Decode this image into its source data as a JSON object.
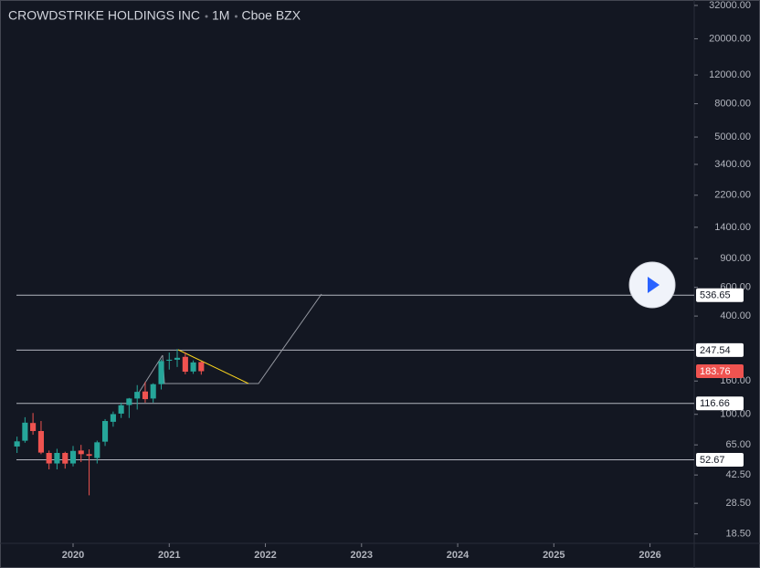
{
  "chart_data": {
    "type": "candlestick",
    "title_parts": [
      "CROWDSTRIKE HOLDINGS INC",
      "1M",
      "Cboe BZX"
    ],
    "x": [
      2019.417,
      2019.5,
      2019.583,
      2019.667,
      2019.75,
      2019.833,
      2019.917,
      2020,
      2020.083,
      2020.167,
      2020.25,
      2020.333,
      2020.417,
      2020.5,
      2020.583,
      2020.667,
      2020.75,
      2020.833,
      2020.917,
      2021,
      2021.083,
      2021.167,
      2021.25,
      2021.333
    ],
    "open": [
      63.5,
      68.9,
      88.5,
      79,
      58,
      50,
      58,
      50,
      60,
      57,
      54,
      68,
      90,
      101,
      114,
      125,
      138,
      125,
      153,
      213,
      216,
      225,
      183,
      209
    ],
    "high": [
      73,
      96,
      101.9,
      91,
      60,
      61.5,
      59,
      64,
      65,
      61,
      69,
      93.5,
      104,
      118,
      126,
      151,
      158,
      155,
      217,
      239,
      251,
      240,
      214,
      211
    ],
    "low": [
      58,
      67,
      75,
      57,
      46,
      46,
      46.5,
      48,
      51,
      31.9,
      50,
      64,
      84,
      95,
      95,
      107,
      118,
      118,
      142,
      188,
      195,
      176,
      177,
      175
    ],
    "close": [
      68.3,
      88.9,
      79,
      58.3,
      50,
      58,
      49.9,
      59.7,
      57,
      55.7,
      67.4,
      91,
      100.3,
      113.7,
      125,
      137.3,
      123.9,
      153,
      211.8,
      216,
      222,
      182.5,
      208,
      183.76
    ],
    "up_color": "#26a69a",
    "down_color": "#ef5350",
    "log_scale": true,
    "ylim": [
      16.2,
      34560
    ],
    "yticks": [
      {
        "value": 32000,
        "label": "32000.00"
      },
      {
        "value": 20000,
        "label": "20000.00"
      },
      {
        "value": 12000,
        "label": "12000.00"
      },
      {
        "value": 8000,
        "label": "8000.00"
      },
      {
        "value": 5000,
        "label": "5000.00"
      },
      {
        "value": 3400,
        "label": "3400.00"
      },
      {
        "value": 2200,
        "label": "2200.00"
      },
      {
        "value": 1400,
        "label": "1400.00"
      },
      {
        "value": 900,
        "label": "900.00"
      },
      {
        "value": 600,
        "label": "600.00"
      },
      {
        "value": 400,
        "label": "400.00"
      },
      {
        "value": 160,
        "label": "160.00"
      },
      {
        "value": 100,
        "label": "100.00"
      },
      {
        "value": 65,
        "label": "65.00"
      },
      {
        "value": 42.5,
        "label": "42.50"
      },
      {
        "value": 28.5,
        "label": "28.50"
      },
      {
        "value": 18.5,
        "label": "18.50"
      }
    ],
    "xlim": [
      2019.24,
      2026.46
    ],
    "xticks": [
      2020,
      2021,
      2022,
      2023,
      2024,
      2025,
      2026
    ],
    "levels": [
      536.65,
      247.54,
      116.66,
      52.67
    ],
    "level_color": "#b2b5be",
    "last_price": 183.76
  }
}
